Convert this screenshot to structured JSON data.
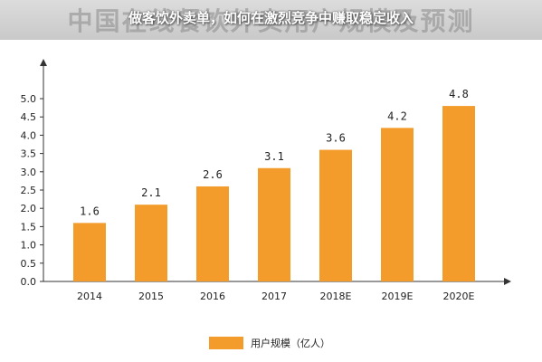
{
  "header": {
    "title_overlay": "做客饮外卖单，如何在激烈竞争中赚取稳定收入",
    "title_background": "中国在线餐饮外卖用户规模及预测"
  },
  "chart_data": {
    "type": "bar",
    "categories": [
      "2014",
      "2015",
      "2016",
      "2017",
      "2018E",
      "2019E",
      "2020E"
    ],
    "series": [
      {
        "name": "用户规模（亿人）",
        "values": [
          1.6,
          2.1,
          2.6,
          3.1,
          3.6,
          4.2,
          4.8
        ],
        "color": "#F39C2B"
      }
    ],
    "data_labels": [
      "1.6",
      "2.1",
      "2.6",
      "3.1",
      "3.6",
      "4.2",
      "4.8"
    ],
    "yticks": [
      "0.0",
      "0.5",
      "1.0",
      "1.5",
      "2.0",
      "2.5",
      "3.0",
      "3.5",
      "4.0",
      "4.5",
      "5.0"
    ],
    "ylim": [
      0,
      5.0
    ],
    "grid": false,
    "legend_position": "bottom",
    "xlabel": "",
    "ylabel": ""
  },
  "legend": {
    "label": "用户规模（亿人）"
  }
}
